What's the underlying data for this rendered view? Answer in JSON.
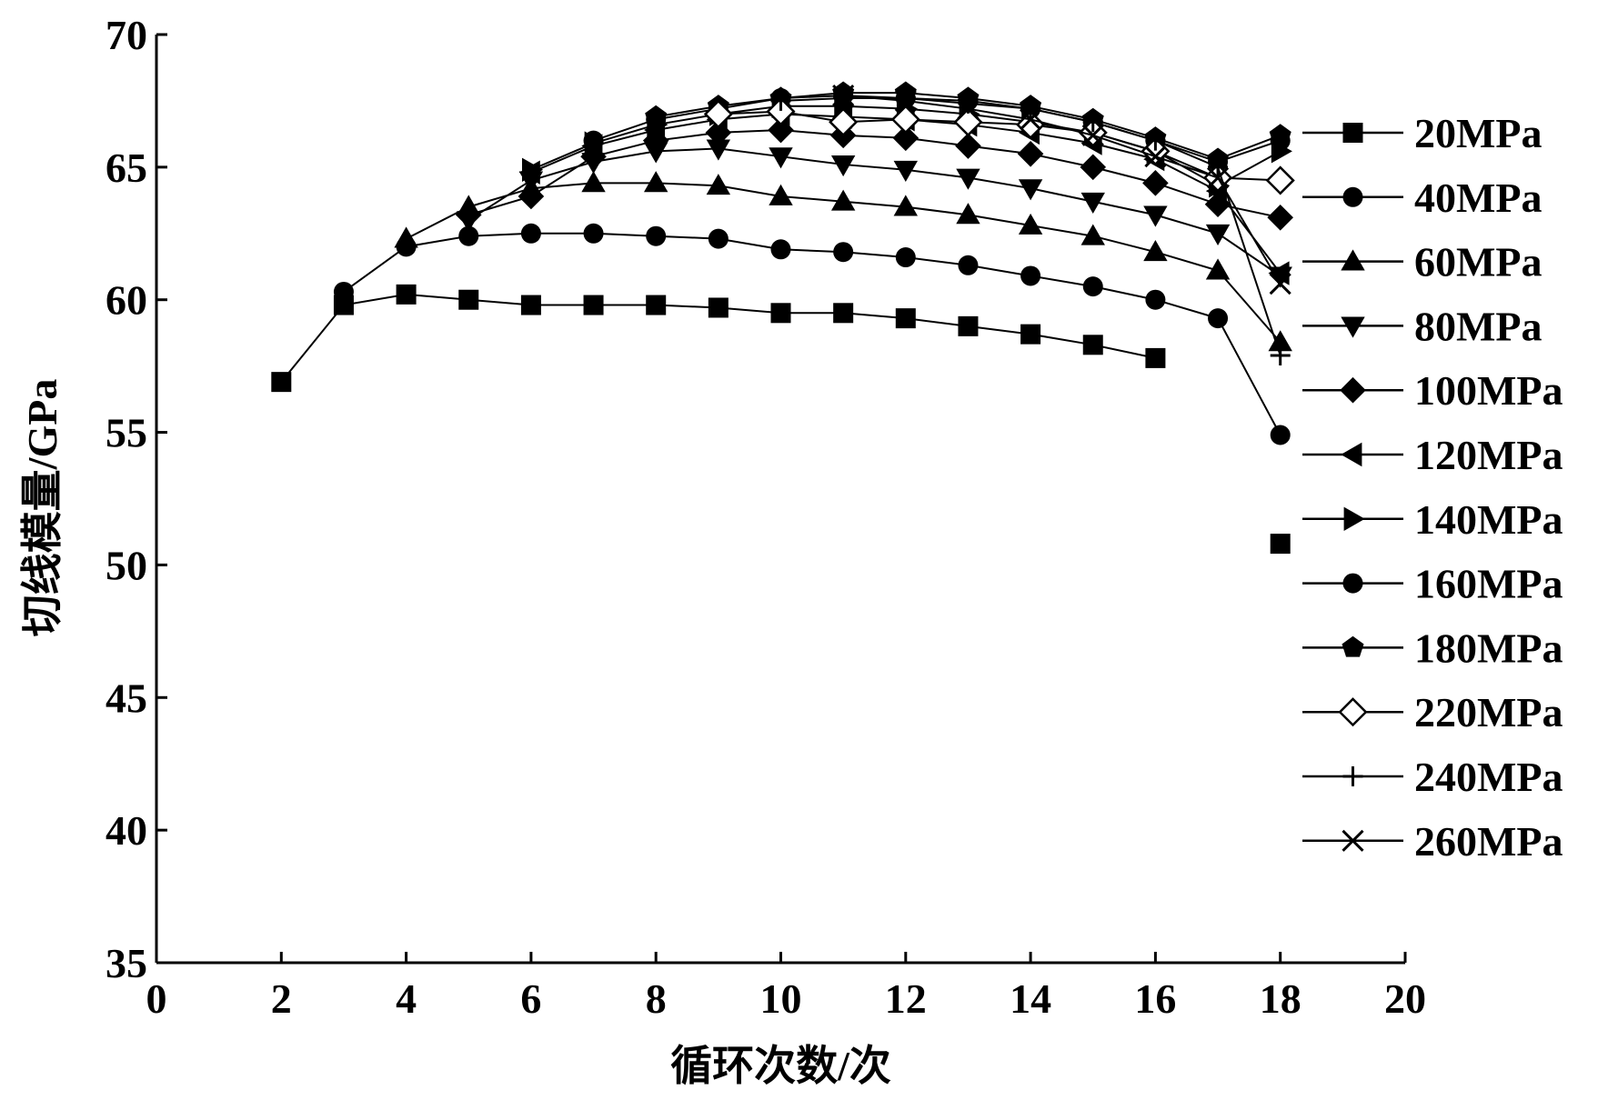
{
  "chart_data": {
    "type": "line",
    "title": "",
    "xlabel": "循环次数/次",
    "ylabel": "切线模量/GPa",
    "xlim": [
      0,
      20
    ],
    "ylim": [
      35,
      70
    ],
    "x_ticks": [
      0,
      2,
      4,
      6,
      8,
      10,
      12,
      14,
      16,
      18,
      20
    ],
    "y_ticks": [
      35,
      40,
      45,
      50,
      55,
      60,
      65,
      70
    ],
    "grid": false,
    "legend_position": "right",
    "series": [
      {
        "name": "20MPa",
        "marker": "square",
        "x": [
          2,
          3,
          4,
          5,
          6,
          7,
          8,
          9,
          10,
          11,
          12,
          13,
          14,
          15,
          16,
          18
        ],
        "y": [
          56.9,
          59.8,
          60.2,
          60.0,
          59.8,
          59.8,
          59.8,
          59.7,
          59.5,
          59.5,
          59.3,
          59.0,
          58.7,
          58.3,
          57.8,
          50.8
        ],
        "connected_points": 15
      },
      {
        "name": "40MPa",
        "marker": "circle",
        "x": [
          3,
          4,
          5,
          6,
          7,
          8,
          9,
          10,
          11,
          12,
          13,
          14,
          15,
          16,
          17,
          18
        ],
        "y": [
          60.3,
          62.0,
          62.4,
          62.5,
          62.5,
          62.4,
          62.3,
          61.9,
          61.8,
          61.6,
          61.3,
          60.9,
          60.5,
          60.0,
          59.3,
          54.9
        ]
      },
      {
        "name": "60MPa",
        "marker": "triangle-up",
        "x": [
          4,
          5,
          6,
          7,
          8,
          9,
          10,
          11,
          12,
          13,
          14,
          15,
          16,
          17,
          18
        ],
        "y": [
          62.3,
          63.5,
          64.2,
          64.4,
          64.4,
          64.3,
          63.9,
          63.7,
          63.5,
          63.2,
          62.8,
          62.4,
          61.8,
          61.1,
          58.4
        ]
      },
      {
        "name": "80MPa",
        "marker": "triangle-down",
        "x": [
          5,
          6,
          7,
          8,
          9,
          10,
          11,
          12,
          13,
          14,
          15,
          16,
          17,
          18
        ],
        "y": [
          63.0,
          64.5,
          65.2,
          65.6,
          65.7,
          65.4,
          65.1,
          64.9,
          64.6,
          64.2,
          63.7,
          63.2,
          62.5,
          60.9
        ]
      },
      {
        "name": "100MPa",
        "marker": "diamond",
        "x": [
          5,
          6,
          7,
          8,
          9,
          10,
          11,
          12,
          13,
          14,
          15,
          16,
          17,
          18
        ],
        "y": [
          63.2,
          63.9,
          65.4,
          66.0,
          66.3,
          66.4,
          66.2,
          66.1,
          65.8,
          65.5,
          65.0,
          64.4,
          63.6,
          63.1
        ]
      },
      {
        "name": "120MPa",
        "marker": "triangle-left",
        "x": [
          6,
          7,
          8,
          9,
          10,
          11,
          12,
          13,
          14,
          15,
          16,
          17,
          18
        ],
        "y": [
          64.8,
          65.8,
          66.4,
          66.8,
          67.0,
          66.9,
          66.8,
          66.6,
          66.3,
          65.9,
          65.3,
          64.1,
          61.0
        ]
      },
      {
        "name": "140MPa",
        "marker": "triangle-right",
        "x": [
          6,
          7,
          8,
          9,
          10,
          11,
          12,
          13,
          14,
          15,
          16,
          17,
          18
        ],
        "y": [
          64.9,
          65.9,
          66.6,
          67.0,
          67.3,
          67.3,
          67.2,
          67.0,
          66.7,
          66.3,
          65.6,
          64.3,
          65.6
        ]
      },
      {
        "name": "160MPa",
        "marker": "circle",
        "x": [
          7,
          8,
          9,
          10,
          11,
          12,
          13,
          14,
          15,
          16,
          17,
          18
        ],
        "y": [
          66.0,
          66.8,
          67.2,
          67.6,
          67.7,
          67.6,
          67.5,
          67.2,
          66.7,
          66.0,
          65.2,
          66.0
        ]
      },
      {
        "name": "180MPa",
        "marker": "pentagon",
        "x": [
          8,
          9,
          10,
          11,
          12,
          13,
          14,
          15,
          16,
          17,
          18
        ],
        "y": [
          66.9,
          67.3,
          67.6,
          67.8,
          67.8,
          67.6,
          67.3,
          66.8,
          66.1,
          65.3,
          66.2
        ]
      },
      {
        "name": "220MPa",
        "marker": "diamond-open",
        "x": [
          9,
          10,
          11,
          12,
          13,
          14,
          15,
          16,
          17,
          18
        ],
        "y": [
          67.0,
          67.1,
          66.7,
          66.8,
          66.7,
          66.6,
          66.3,
          65.6,
          64.6,
          64.5
        ]
      },
      {
        "name": "240MPa",
        "marker": "plus",
        "x": [
          10,
          11,
          12,
          13,
          14,
          15,
          16,
          17,
          18
        ],
        "y": [
          67.5,
          67.6,
          67.6,
          67.4,
          67.2,
          66.7,
          66.0,
          65.0,
          57.9
        ]
      },
      {
        "name": "260MPa",
        "marker": "x",
        "x": [
          11,
          12,
          13,
          14,
          15,
          16,
          17,
          18
        ],
        "y": [
          67.7,
          67.5,
          67.2,
          66.8,
          66.2,
          65.4,
          64.6,
          60.6
        ]
      }
    ]
  }
}
